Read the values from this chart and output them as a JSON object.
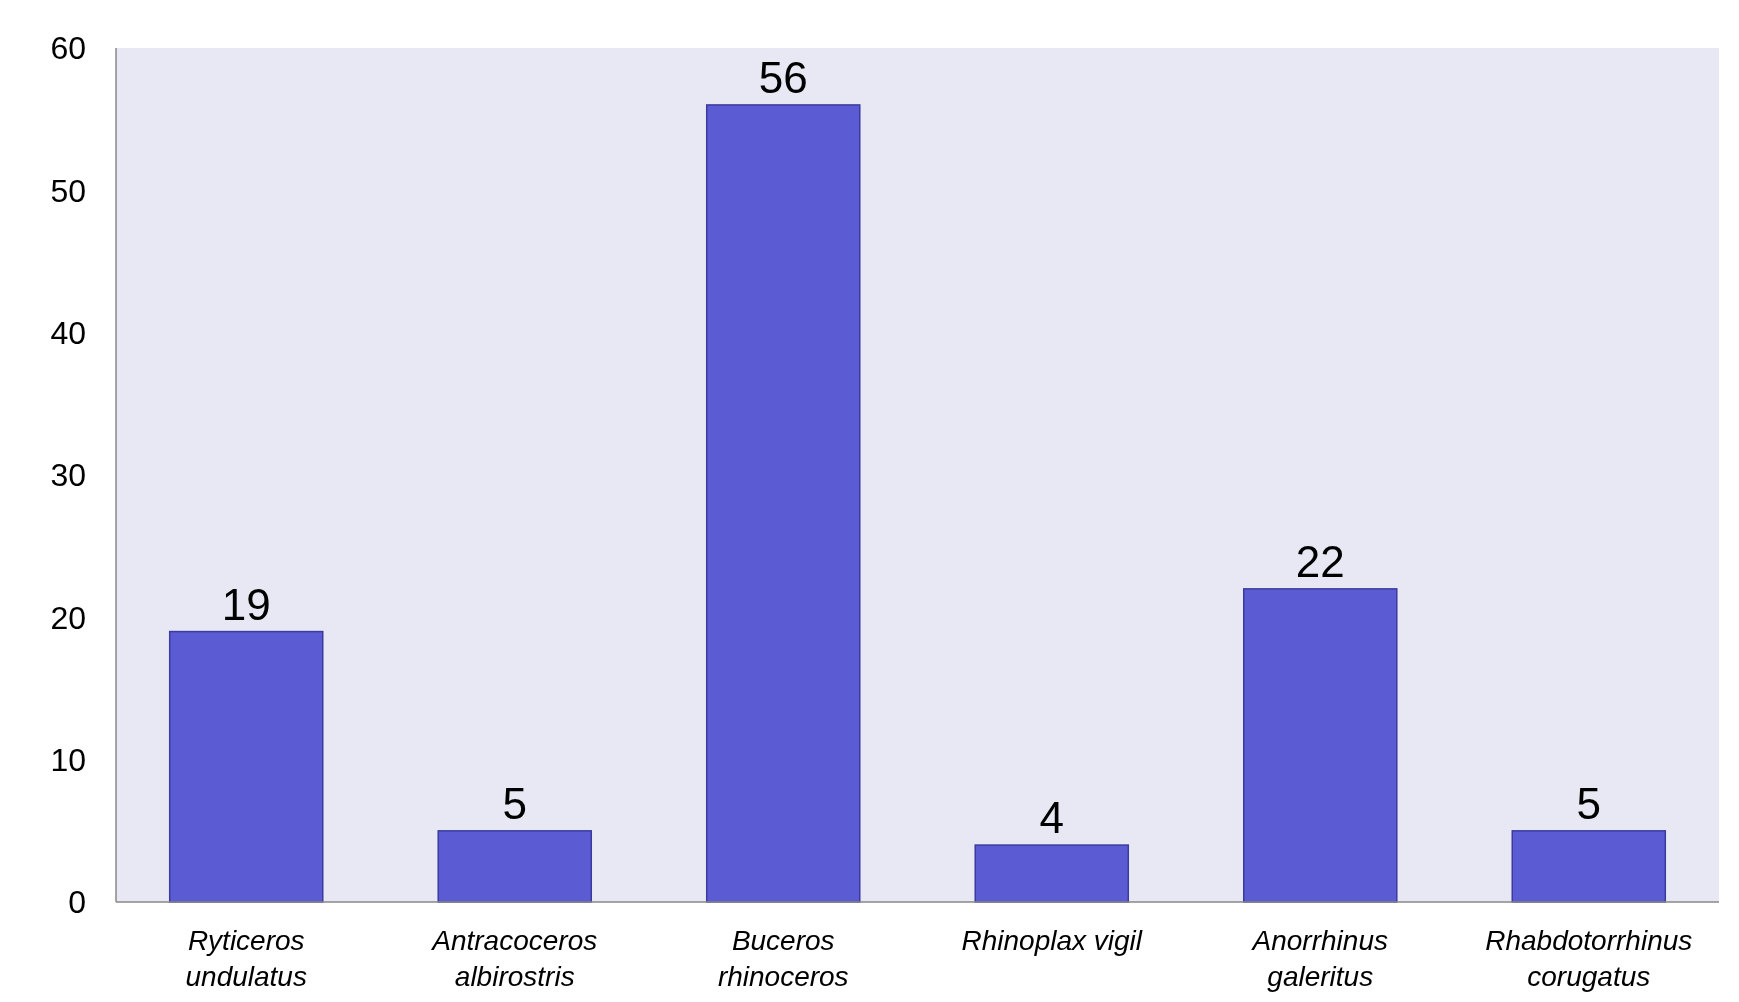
{
  "chart_data": {
    "type": "bar",
    "categories": [
      "Ryticeros\nundulatus",
      "Antracoceros\nalbirostris",
      "Buceros\nrhinoceros",
      "Rhinoplax vigil",
      "Anorrhinus\ngaleritus",
      "Rhabdotorrhinus\ncorugatus"
    ],
    "values": [
      19,
      5,
      56,
      4,
      22,
      5
    ],
    "color": "#5b5bd3",
    "ylim": [
      0,
      60
    ],
    "yticks": [
      0,
      10,
      20,
      30,
      40,
      50,
      60
    ],
    "grid": false,
    "data_labels": true
  }
}
